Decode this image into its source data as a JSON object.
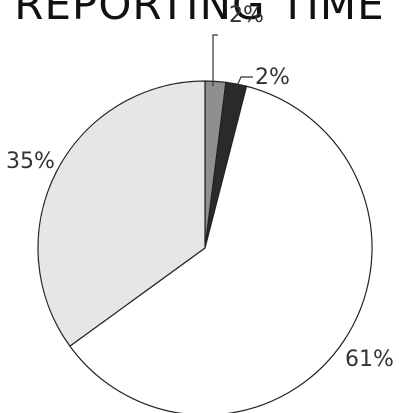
{
  "chart_data": {
    "type": "pie",
    "title": "REPORTING TIME",
    "slices": [
      {
        "label": "2%",
        "value": 2,
        "color": "#8f8f8f"
      },
      {
        "label": "2%",
        "value": 2,
        "color": "#2a2a2a"
      },
      {
        "label": "61%",
        "value": 61,
        "color": "#ffffff"
      },
      {
        "label": "35%",
        "value": 35,
        "color": "#e6e6e6"
      }
    ],
    "legend": "none",
    "grid": false
  }
}
